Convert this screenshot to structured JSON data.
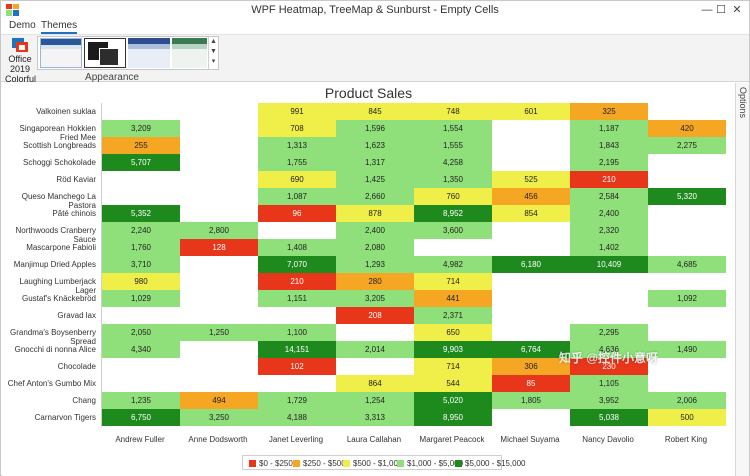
{
  "window": {
    "title": "WPF Heatmap, TreeMap & Sunburst - Empty Cells",
    "minimize": "—",
    "maximize": "☐",
    "close": "✕"
  },
  "ribbon": {
    "tabs": [
      {
        "label": "Demo",
        "active": false
      },
      {
        "label": "Themes",
        "active": true
      }
    ],
    "theme_button_label": "Office 2019 Colorful",
    "group_label": "Appearance"
  },
  "options_label": "Options",
  "watermark": "知乎 @控件小意呀",
  "colors": {
    "r0": "#e8361a",
    "r1": "#f5a623",
    "r2": "#f0ef4a",
    "r3": "#8fe07a",
    "r4": "#1e8a1e",
    "accent": "#1e73be"
  },
  "chart_data": {
    "type": "heatmap",
    "title": "Product Sales",
    "columns": [
      "Andrew Fuller",
      "Anne Dodsworth",
      "Janet Leverling",
      "Laura Callahan",
      "Margaret Peacock",
      "Michael Suyama",
      "Nancy Davolio",
      "Robert King"
    ],
    "rows": [
      {
        "name": "Valkoinen suklaa",
        "values": [
          null,
          null,
          991,
          845,
          748,
          601,
          325,
          null
        ]
      },
      {
        "name": "Singaporean Hokkien Fried Mee",
        "values": [
          3209,
          null,
          708,
          1596,
          1554,
          null,
          1187,
          420
        ]
      },
      {
        "name": "Scottish Longbreads",
        "values": [
          255,
          null,
          1313,
          1623,
          1555,
          null,
          1843,
          2275
        ]
      },
      {
        "name": "Schoggi Schokolade",
        "values": [
          5707,
          null,
          1755,
          1317,
          4258,
          null,
          2195,
          null
        ]
      },
      {
        "name": "Röd Kaviar",
        "values": [
          null,
          null,
          690,
          1425,
          1350,
          525,
          210,
          null
        ]
      },
      {
        "name": "Queso Manchego La Pastora",
        "values": [
          null,
          null,
          1087,
          2660,
          760,
          456,
          2584,
          5320
        ]
      },
      {
        "name": "Pâté chinois",
        "values": [
          5352,
          null,
          96,
          878,
          8952,
          854,
          2400,
          null
        ]
      },
      {
        "name": "Northwoods Cranberry Sauce",
        "values": [
          2240,
          2800,
          null,
          2400,
          3600,
          null,
          2320,
          null
        ]
      },
      {
        "name": "Mascarpone Fabioli",
        "values": [
          1760,
          128,
          1408,
          2080,
          null,
          null,
          1402,
          null
        ]
      },
      {
        "name": "Manjimup Dried Apples",
        "values": [
          3710,
          null,
          7070,
          1293,
          4982,
          6180,
          10409,
          4685
        ]
      },
      {
        "name": "Laughing Lumberjack Lager",
        "values": [
          980,
          null,
          210,
          280,
          714,
          null,
          null,
          null
        ]
      },
      {
        "name": "Gustaf's Knäckebröd",
        "values": [
          1029,
          null,
          1151,
          3205,
          441,
          null,
          null,
          1092
        ]
      },
      {
        "name": "Gravad lax",
        "values": [
          null,
          null,
          null,
          208,
          2371,
          null,
          null,
          null
        ]
      },
      {
        "name": "Grandma's Boysenberry Spread",
        "values": [
          2050,
          1250,
          1100,
          null,
          650,
          null,
          2295,
          null
        ]
      },
      {
        "name": "Gnocchi di nonna Alice",
        "values": [
          4340,
          null,
          14151,
          2014,
          9903,
          6764,
          4636,
          1490
        ]
      },
      {
        "name": "Chocolade",
        "values": [
          null,
          null,
          102,
          null,
          714,
          306,
          230,
          null
        ]
      },
      {
        "name": "Chef Anton's Gumbo Mix",
        "values": [
          null,
          null,
          null,
          864,
          544,
          85,
          1105,
          null
        ]
      },
      {
        "name": "Chang",
        "values": [
          1235,
          494,
          1729,
          1254,
          5020,
          1805,
          3952,
          2006
        ]
      },
      {
        "name": "Carnarvon Tigers",
        "values": [
          6750,
          3250,
          4188,
          3313,
          8950,
          null,
          5038,
          500
        ]
      }
    ],
    "color_ranges": [
      {
        "label": "$0 - $250",
        "min": 0,
        "max": 250,
        "color": "#e8361a"
      },
      {
        "label": "$250 - $500",
        "min": 250,
        "max": 500,
        "color": "#f5a623"
      },
      {
        "label": "$500 - $1,000",
        "min": 500,
        "max": 1000,
        "color": "#f0ef4a"
      },
      {
        "label": "$1,000 - $5,000",
        "min": 1000,
        "max": 5000,
        "color": "#8fe07a"
      },
      {
        "label": "$5,000 - $15,000",
        "min": 5000,
        "max": 15000,
        "color": "#1e8a1e"
      }
    ],
    "legend_position": "bottom"
  }
}
